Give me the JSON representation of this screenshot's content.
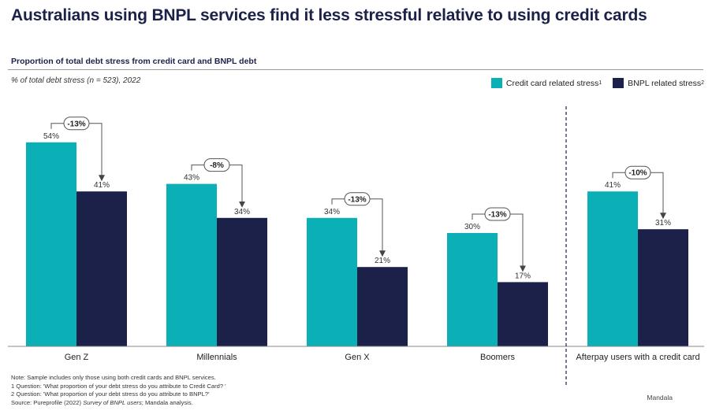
{
  "title": "Australians using BNPL services find it less stressful relative to using credit cards",
  "subtitle": "Proportion of total debt stress from credit card and BNPL debt",
  "measure": "% of total debt stress (n = 523), 2022",
  "legend": [
    {
      "label": "Credit card related stress",
      "sup": "1",
      "color": "#0bb0b6"
    },
    {
      "label": "BNPL related stress",
      "sup": "2",
      "color": "#1c2149"
    }
  ],
  "chart_data": {
    "type": "bar",
    "categories": [
      "Gen Z",
      "Millennials",
      "Gen X",
      "Boomers",
      "Afterpay users with a credit card"
    ],
    "series": [
      {
        "name": "Credit card related stress",
        "values": [
          54,
          43,
          34,
          30,
          41
        ],
        "labels": [
          "54%",
          "43%",
          "34%",
          "30%",
          "41%"
        ]
      },
      {
        "name": "BNPL related stress",
        "values": [
          41,
          34,
          21,
          17,
          31
        ],
        "labels": [
          "41%",
          "34%",
          "21%",
          "17%",
          "31%"
        ]
      }
    ],
    "differences": [
      "-13%",
      "-8%",
      "-13%",
      "-13%",
      "-10%"
    ],
    "ylim": [
      0,
      60
    ]
  },
  "footnotes": {
    "note": "Note: Sample includes only those using both credit cards and BNPL services.",
    "q1": "1 Question: 'What proportion of your debt stress do you attribute to Credit Card? '",
    "q2": "2 Question: 'What proportion of your debt stress do you attribute to BNPL?'",
    "source_prefix": "Source: Pureprofile (2022) ",
    "source_italic": "Survey of BNPL users",
    "source_suffix": "; Mandala analysis."
  },
  "brand": "Mandala"
}
